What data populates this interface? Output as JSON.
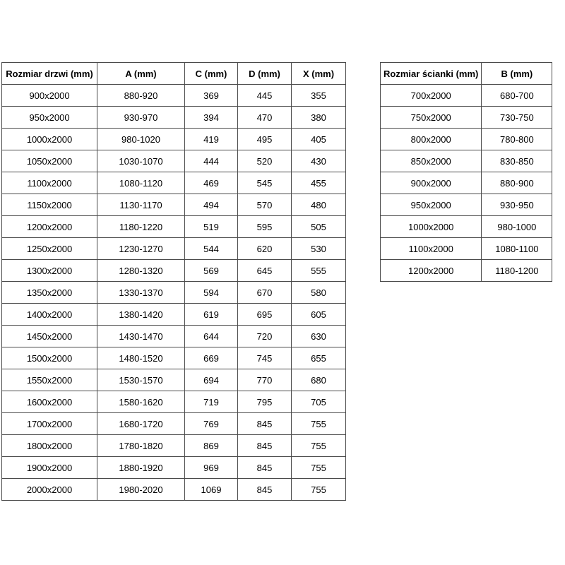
{
  "door_table": {
    "headers": [
      "Rozmiar drzwi (mm)",
      "A (mm)",
      "C (mm)",
      "D (mm)",
      "X (mm)"
    ],
    "rows": [
      [
        "900x2000",
        "880-920",
        "369",
        "445",
        "355"
      ],
      [
        "950x2000",
        "930-970",
        "394",
        "470",
        "380"
      ],
      [
        "1000x2000",
        "980-1020",
        "419",
        "495",
        "405"
      ],
      [
        "1050x2000",
        "1030-1070",
        "444",
        "520",
        "430"
      ],
      [
        "1100x2000",
        "1080-1120",
        "469",
        "545",
        "455"
      ],
      [
        "1150x2000",
        "1130-1170",
        "494",
        "570",
        "480"
      ],
      [
        "1200x2000",
        "1180-1220",
        "519",
        "595",
        "505"
      ],
      [
        "1250x2000",
        "1230-1270",
        "544",
        "620",
        "530"
      ],
      [
        "1300x2000",
        "1280-1320",
        "569",
        "645",
        "555"
      ],
      [
        "1350x2000",
        "1330-1370",
        "594",
        "670",
        "580"
      ],
      [
        "1400x2000",
        "1380-1420",
        "619",
        "695",
        "605"
      ],
      [
        "1450x2000",
        "1430-1470",
        "644",
        "720",
        "630"
      ],
      [
        "1500x2000",
        "1480-1520",
        "669",
        "745",
        "655"
      ],
      [
        "1550x2000",
        "1530-1570",
        "694",
        "770",
        "680"
      ],
      [
        "1600x2000",
        "1580-1620",
        "719",
        "795",
        "705"
      ],
      [
        "1700x2000",
        "1680-1720",
        "769",
        "845",
        "755"
      ],
      [
        "1800x2000",
        "1780-1820",
        "869",
        "845",
        "755"
      ],
      [
        "1900x2000",
        "1880-1920",
        "969",
        "845",
        "755"
      ],
      [
        "2000x2000",
        "1980-2020",
        "1069",
        "845",
        "755"
      ]
    ]
  },
  "wall_table": {
    "headers": [
      "Rozmiar ścianki (mm)",
      "B (mm)"
    ],
    "rows": [
      [
        "700x2000",
        "680-700"
      ],
      [
        "750x2000",
        "730-750"
      ],
      [
        "800x2000",
        "780-800"
      ],
      [
        "850x2000",
        "830-850"
      ],
      [
        "900x2000",
        "880-900"
      ],
      [
        "950x2000",
        "930-950"
      ],
      [
        "1000x2000",
        "980-1000"
      ],
      [
        "1100x2000",
        "1080-1100"
      ],
      [
        "1200x2000",
        "1180-1200"
      ]
    ]
  },
  "colors": {
    "border": "#4a4a4a",
    "text": "#000000",
    "background": "#ffffff"
  }
}
